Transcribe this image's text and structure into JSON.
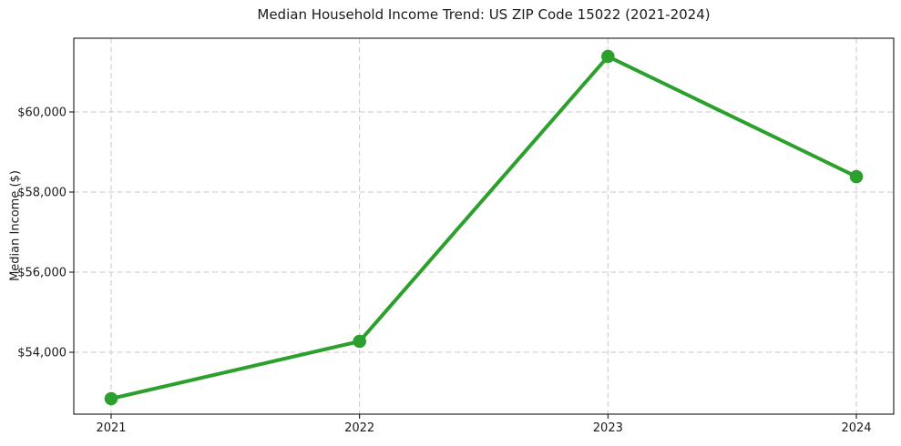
{
  "figure": {
    "background": "#ffffff"
  },
  "chart_data": {
    "type": "line",
    "title": "Median Household Income Trend: US ZIP Code 15022 (2021-2024)",
    "xlabel": "",
    "ylabel": "Median Income ($)",
    "categories": [
      "2021",
      "2022",
      "2023",
      "2024"
    ],
    "series": [
      {
        "values": [
          52841,
          54273,
          61386,
          58386
        ],
        "color": "#2ca02c",
        "marker": "circle"
      }
    ],
    "ylim": [
      52455,
      61841
    ],
    "yticks": {
      "values": [
        54000,
        56000,
        58000,
        60000
      ],
      "labels": [
        "$54,000",
        "$56,000",
        "$58,000",
        "$60,000"
      ]
    },
    "grid": true,
    "grid_style": "dashed",
    "grid_color": "#c9c9c9",
    "axis_color": "#000000",
    "text_color": "#1a1a1a",
    "legend": "none"
  }
}
